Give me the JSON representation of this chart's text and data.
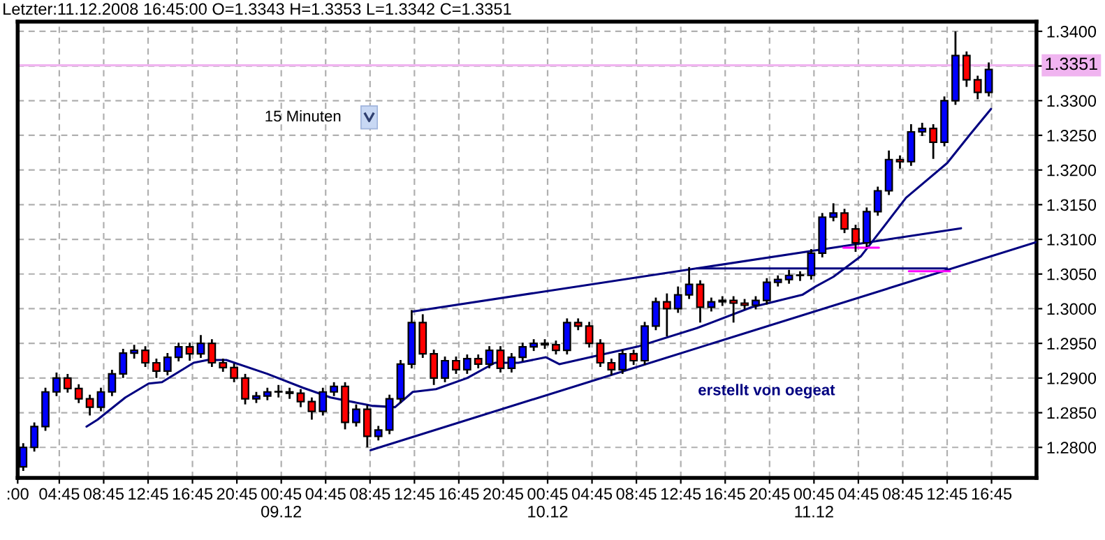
{
  "chart_data": {
    "type": "candlestick",
    "title": "Letzter:11.12.2008 16:45:00 O=1.3343 H=1.3353 L=1.3342 C=1.3351",
    "annotations": [
      "15 Minuten",
      "erstellt von oegeat"
    ],
    "xlim": [
      "2008-12-08T01:00",
      "2008-12-11T20:48"
    ],
    "xticks": [
      {
        "value": "2008-12-08T01:00",
        "label": ":00"
      },
      {
        "value": "2008-12-08T04:45",
        "label": "04:45"
      },
      {
        "value": "2008-12-08T08:45",
        "label": "08:45"
      },
      {
        "value": "2008-12-08T12:45",
        "label": "12:45"
      },
      {
        "value": "2008-12-08T16:45",
        "label": "16:45"
      },
      {
        "value": "2008-12-08T20:45",
        "label": "20:45"
      },
      {
        "value": "2008-12-09T00:45",
        "label": "00:45\n09.12"
      },
      {
        "value": "2008-12-09T04:45",
        "label": "04:45"
      },
      {
        "value": "2008-12-09T08:45",
        "label": "08:45"
      },
      {
        "value": "2008-12-09T12:45",
        "label": "12:45"
      },
      {
        "value": "2008-12-09T16:45",
        "label": "16:45"
      },
      {
        "value": "2008-12-09T20:45",
        "label": "20:45"
      },
      {
        "value": "2008-12-10T00:45",
        "label": "00:45\n10.12"
      },
      {
        "value": "2008-12-10T04:45",
        "label": "04:45"
      },
      {
        "value": "2008-12-10T08:45",
        "label": "08:45"
      },
      {
        "value": "2008-12-10T12:45",
        "label": "12:45"
      },
      {
        "value": "2008-12-10T16:45",
        "label": "16:45"
      },
      {
        "value": "2008-12-10T20:45",
        "label": "20:45"
      },
      {
        "value": "2008-12-11T00:45",
        "label": "00:45\n11.12"
      },
      {
        "value": "2008-12-11T04:45",
        "label": "04:45"
      },
      {
        "value": "2008-12-11T08:45",
        "label": "08:45"
      },
      {
        "value": "2008-12-11T12:45",
        "label": "12:45"
      },
      {
        "value": "2008-12-11T16:45",
        "label": "16:45"
      }
    ],
    "ylim": [
      1.2756,
      1.3414
    ],
    "yticks": [
      {
        "value": 1.28,
        "label": "1.2800"
      },
      {
        "value": 1.285,
        "label": "1.2850"
      },
      {
        "value": 1.29,
        "label": "1.2900"
      },
      {
        "value": 1.295,
        "label": "1.2950"
      },
      {
        "value": 1.3,
        "label": "1.3000"
      },
      {
        "value": 1.305,
        "label": "1.3050"
      },
      {
        "value": 1.31,
        "label": "1.3100"
      },
      {
        "value": 1.315,
        "label": "1.3150"
      },
      {
        "value": 1.32,
        "label": "1.3200"
      },
      {
        "value": 1.325,
        "label": "1.3250"
      },
      {
        "value": 1.33,
        "label": "1.3300"
      },
      {
        "value": 1.335,
        "label": null
      },
      {
        "value": 1.34,
        "label": "1.3400"
      }
    ],
    "grid": true,
    "ref_lines": [
      {
        "axis": "y",
        "value": 1.3351,
        "label": "1.3351",
        "color": "#f0b4f0"
      }
    ],
    "series": [
      {
        "x": [
          "2008-12-08T01:30",
          "2008-12-08T02:30",
          "2008-12-08T03:30",
          "2008-12-08T04:30",
          "2008-12-08T05:30",
          "2008-12-08T06:30",
          "2008-12-08T07:30",
          "2008-12-08T08:30",
          "2008-12-08T09:30",
          "2008-12-08T10:30",
          "2008-12-08T11:30",
          "2008-12-08T12:30",
          "2008-12-08T13:30",
          "2008-12-08T14:30",
          "2008-12-08T15:30",
          "2008-12-08T16:30",
          "2008-12-08T17:30",
          "2008-12-08T18:30",
          "2008-12-08T19:30",
          "2008-12-08T20:30",
          "2008-12-08T21:30",
          "2008-12-08T22:30",
          "2008-12-08T23:30",
          "2008-12-09T00:30",
          "2008-12-09T01:30",
          "2008-12-09T02:30",
          "2008-12-09T03:30",
          "2008-12-09T04:30",
          "2008-12-09T05:30",
          "2008-12-09T06:30",
          "2008-12-09T07:30",
          "2008-12-09T08:30",
          "2008-12-09T09:30",
          "2008-12-09T10:30",
          "2008-12-09T11:30",
          "2008-12-09T12:30",
          "2008-12-09T13:30",
          "2008-12-09T14:30",
          "2008-12-09T15:30",
          "2008-12-09T16:30",
          "2008-12-09T17:30",
          "2008-12-09T18:30",
          "2008-12-09T19:30",
          "2008-12-09T20:30",
          "2008-12-09T21:30",
          "2008-12-09T22:30",
          "2008-12-09T23:30",
          "2008-12-10T00:30",
          "2008-12-10T01:30",
          "2008-12-10T02:30",
          "2008-12-10T03:30",
          "2008-12-10T04:30",
          "2008-12-10T05:30",
          "2008-12-10T06:30",
          "2008-12-10T07:30",
          "2008-12-10T08:30",
          "2008-12-10T09:30",
          "2008-12-10T10:30",
          "2008-12-10T11:30",
          "2008-12-10T12:30",
          "2008-12-10T13:30",
          "2008-12-10T14:30",
          "2008-12-10T15:30",
          "2008-12-10T16:30",
          "2008-12-10T17:30",
          "2008-12-10T18:30",
          "2008-12-10T19:30",
          "2008-12-10T20:30",
          "2008-12-10T21:30",
          "2008-12-10T22:30",
          "2008-12-10T23:30",
          "2008-12-11T00:30",
          "2008-12-11T01:30",
          "2008-12-11T02:30",
          "2008-12-11T03:30",
          "2008-12-11T04:30",
          "2008-12-11T05:30",
          "2008-12-11T06:30",
          "2008-12-11T07:30",
          "2008-12-11T08:30",
          "2008-12-11T09:30",
          "2008-12-11T10:30",
          "2008-12-11T11:30",
          "2008-12-11T12:30",
          "2008-12-11T13:30",
          "2008-12-11T14:30",
          "2008-12-11T15:30",
          "2008-12-11T16:30"
        ],
        "ohlc": [
          [
            1.2772,
            1.2806,
            1.2766,
            1.28
          ],
          [
            1.28,
            1.2836,
            1.2794,
            1.283
          ],
          [
            1.283,
            1.2886,
            1.2824,
            1.288
          ],
          [
            1.288,
            1.2908,
            1.2874,
            1.29
          ],
          [
            1.29,
            1.2906,
            1.2879,
            1.2885
          ],
          [
            1.2885,
            1.2891,
            1.2864,
            1.287
          ],
          [
            1.287,
            1.2876,
            1.2846,
            1.2858
          ],
          [
            1.2858,
            1.2886,
            1.2852,
            1.288
          ],
          [
            1.288,
            1.2912,
            1.2874,
            1.2906
          ],
          [
            1.2906,
            1.2942,
            1.29,
            1.2936
          ],
          [
            1.2936,
            1.2948,
            1.2928,
            1.294
          ],
          [
            1.294,
            1.2946,
            1.2916,
            1.2922
          ],
          [
            1.2922,
            1.2928,
            1.29,
            1.291
          ],
          [
            1.291,
            1.2936,
            1.2904,
            1.293
          ],
          [
            1.293,
            1.2951,
            1.2924,
            1.2945
          ],
          [
            1.2945,
            1.2951,
            1.2925,
            1.2935
          ],
          [
            1.2935,
            1.2962,
            1.2929,
            1.295
          ],
          [
            1.295,
            1.2956,
            1.2916,
            1.2922
          ],
          [
            1.2922,
            1.2928,
            1.2909,
            1.2915
          ],
          [
            1.2915,
            1.2921,
            1.2894,
            1.29
          ],
          [
            1.29,
            1.2906,
            1.2862,
            1.287
          ],
          [
            1.287,
            1.288,
            1.2864,
            1.2874
          ],
          [
            1.2874,
            1.2886,
            1.2868,
            1.288
          ],
          [
            1.288,
            1.289,
            1.2872,
            1.288
          ],
          [
            1.288,
            1.2886,
            1.287,
            1.2878
          ],
          [
            1.2878,
            1.2884,
            1.2858,
            1.2866
          ],
          [
            1.2866,
            1.2872,
            1.284,
            1.2852
          ],
          [
            1.2852,
            1.2886,
            1.2846,
            1.288
          ],
          [
            1.288,
            1.2894,
            1.2874,
            1.2888
          ],
          [
            1.2888,
            1.2894,
            1.2826,
            1.2836
          ],
          [
            1.2836,
            1.2862,
            1.283,
            1.2855
          ],
          [
            1.2855,
            1.2861,
            1.28,
            1.2816
          ],
          [
            1.2816,
            1.2831,
            1.281,
            1.2825
          ],
          [
            1.2825,
            1.2876,
            1.2819,
            1.287
          ],
          [
            1.287,
            1.2926,
            1.2864,
            1.292
          ],
          [
            1.292,
            1.2998,
            1.2914,
            1.298
          ],
          [
            1.298,
            1.2992,
            1.2929,
            1.2935
          ],
          [
            1.2935,
            1.2941,
            1.289,
            1.29
          ],
          [
            1.29,
            1.2931,
            1.2894,
            1.2925
          ],
          [
            1.2925,
            1.2931,
            1.2906,
            1.2912
          ],
          [
            1.2912,
            1.2934,
            1.2906,
            1.2928
          ],
          [
            1.2928,
            1.2934,
            1.2914,
            1.292
          ],
          [
            1.292,
            1.2946,
            1.2914,
            1.294
          ],
          [
            1.294,
            1.2946,
            1.2908,
            1.2914
          ],
          [
            1.2914,
            1.2936,
            1.2908,
            1.293
          ],
          [
            1.293,
            1.2951,
            1.2924,
            1.2945
          ],
          [
            1.2945,
            1.2956,
            1.2939,
            1.295
          ],
          [
            1.295,
            1.2956,
            1.2942,
            1.2948
          ],
          [
            1.2948,
            1.2954,
            1.2934,
            1.294
          ],
          [
            1.294,
            1.2986,
            1.2934,
            1.298
          ],
          [
            1.298,
            1.2986,
            1.2969,
            1.2975
          ],
          [
            1.2975,
            1.2981,
            1.2944,
            1.295
          ],
          [
            1.295,
            1.2956,
            1.2916,
            1.2922
          ],
          [
            1.2922,
            1.2928,
            1.2904,
            1.2912
          ],
          [
            1.2912,
            1.2941,
            1.2906,
            1.2935
          ],
          [
            1.2935,
            1.2941,
            1.2919,
            1.2925
          ],
          [
            1.2925,
            1.2981,
            1.2919,
            1.2975
          ],
          [
            1.2975,
            1.3016,
            1.2969,
            1.301
          ],
          [
            1.301,
            1.3022,
            1.296,
            1.3
          ],
          [
            1.3,
            1.3032,
            1.2994,
            1.302
          ],
          [
            1.302,
            1.306,
            1.3014,
            1.3035
          ],
          [
            1.3035,
            1.3041,
            1.298,
            1.3002
          ],
          [
            1.3002,
            1.3016,
            1.2996,
            1.301
          ],
          [
            1.301,
            1.3018,
            1.3004,
            1.3012
          ],
          [
            1.3012,
            1.3018,
            1.298,
            1.3008
          ],
          [
            1.3008,
            1.3014,
            1.2999,
            1.3005
          ],
          [
            1.3005,
            1.3018,
            1.2999,
            1.3012
          ],
          [
            1.3012,
            1.3044,
            1.3006,
            1.3038
          ],
          [
            1.3038,
            1.3048,
            1.3032,
            1.3042
          ],
          [
            1.3042,
            1.3056,
            1.3036,
            1.3048
          ],
          [
            1.3048,
            1.3054,
            1.304,
            1.3048
          ],
          [
            1.3048,
            1.3086,
            1.3042,
            1.308
          ],
          [
            1.308,
            1.3138,
            1.3074,
            1.3132
          ],
          [
            1.3132,
            1.3152,
            1.3126,
            1.3138
          ],
          [
            1.3138,
            1.3144,
            1.3109,
            1.3115
          ],
          [
            1.3115,
            1.3121,
            1.3082,
            1.3095
          ],
          [
            1.3095,
            1.3146,
            1.3089,
            1.314
          ],
          [
            1.314,
            1.3176,
            1.3134,
            1.317
          ],
          [
            1.317,
            1.3228,
            1.3164,
            1.3215
          ],
          [
            1.3215,
            1.3221,
            1.3202,
            1.3212
          ],
          [
            1.3212,
            1.3266,
            1.3206,
            1.3255
          ],
          [
            1.3255,
            1.3268,
            1.3249,
            1.326
          ],
          [
            1.326,
            1.3266,
            1.3216,
            1.324
          ],
          [
            1.324,
            1.3306,
            1.3234,
            1.33
          ],
          [
            1.33,
            1.34,
            1.3294,
            1.3365
          ],
          [
            1.3365,
            1.3371,
            1.332,
            1.333
          ],
          [
            1.333,
            1.3336,
            1.3302,
            1.3312
          ],
          [
            1.3312,
            1.3355,
            1.3306,
            1.3345
          ]
        ],
        "colors": [
          "#0000ff",
          "#0000ff",
          "#0000ff",
          "#0000ff",
          "#ff0000",
          "#ff0000",
          "#ff0000",
          "#0000ff",
          "#0000ff",
          "#0000ff",
          "#0000ff",
          "#ff0000",
          "#ff0000",
          "#0000ff",
          "#0000ff",
          "#ff0000",
          "#0000ff",
          "#ff0000",
          "#ff0000",
          "#ff0000",
          "#ff0000",
          "#0000ff",
          "#0000ff",
          "#0000ff",
          "#ff0000",
          "#ff0000",
          "#ff0000",
          "#0000ff",
          "#0000ff",
          "#ff0000",
          "#0000ff",
          "#ff0000",
          "#0000ff",
          "#0000ff",
          "#0000ff",
          "#0000ff",
          "#ff0000",
          "#ff0000",
          "#0000ff",
          "#ff0000",
          "#0000ff",
          "#ff0000",
          "#0000ff",
          "#ff0000",
          "#0000ff",
          "#0000ff",
          "#0000ff",
          "#ff0000",
          "#ff0000",
          "#0000ff",
          "#ff0000",
          "#ff0000",
          "#ff0000",
          "#ff0000",
          "#0000ff",
          "#ff0000",
          "#0000ff",
          "#0000ff",
          "#ff0000",
          "#0000ff",
          "#0000ff",
          "#ff0000",
          "#0000ff",
          "#0000ff",
          "#ff0000",
          "#ff0000",
          "#0000ff",
          "#0000ff",
          "#0000ff",
          "#0000ff",
          "#0000ff",
          "#0000ff",
          "#0000ff",
          "#0000ff",
          "#ff0000",
          "#ff0000",
          "#0000ff",
          "#0000ff",
          "#0000ff",
          "#ff0000",
          "#0000ff",
          "#0000ff",
          "#ff0000",
          "#0000ff",
          "#0000ff",
          "#ff0000",
          "#ff0000",
          "#0000ff"
        ]
      },
      {
        "type": "line",
        "color": "#000080",
        "x": [
          "2008-12-08T07:12",
          "2008-12-08T08:12",
          "2008-12-08T10:42",
          "2008-12-08T12:48",
          "2008-12-08T14:00",
          "2008-12-08T16:51",
          "2008-12-08T18:06",
          "2008-12-08T19:48",
          "2008-12-08T23:30",
          "2008-12-09T02:42",
          "2008-12-09T05:12",
          "2008-12-09T08:54",
          "2008-12-09T11:00",
          "2008-12-09T12:36",
          "2008-12-09T14:42",
          "2008-12-09T17:30",
          "2008-12-09T20:00",
          "2008-12-09T22:06",
          "2008-12-10T00:36",
          "2008-12-10T01:48",
          "2008-12-10T09:00",
          "2008-12-10T14:12",
          "2008-12-10T19:06",
          "2008-12-10T23:42",
          "2008-12-11T00:54",
          "2008-12-11T02:30",
          "2008-12-11T05:00",
          "2008-12-11T09:03",
          "2008-12-11T12:45",
          "2008-12-11T14:51",
          "2008-12-11T16:42"
        ],
        "values": [
          1.283,
          1.284,
          1.2872,
          1.2892,
          1.2894,
          1.2922,
          1.2926,
          1.2926,
          1.2906,
          1.2886,
          1.2872,
          1.286,
          1.2858,
          1.288,
          1.2884,
          1.29,
          1.2922,
          1.2922,
          1.293,
          1.292,
          1.2946,
          1.2972,
          1.3002,
          1.302,
          1.3032,
          1.3046,
          1.3076,
          1.316,
          1.321,
          1.3252,
          1.3288
        ]
      },
      {
        "type": "line",
        "color": "#000080",
        "x": [
          "2008-12-09T12:36",
          "2008-12-11T14:00"
        ],
        "values": [
          1.2996,
          1.3116
        ]
      },
      {
        "type": "line",
        "color": "#000080",
        "x": [
          "2008-12-09T08:48",
          "2008-12-11T20:48"
        ],
        "values": [
          1.2796,
          1.3096
        ]
      },
      {
        "type": "line",
        "color": "#000080",
        "x": [
          "2008-12-10T14:12",
          "2008-12-11T12:45"
        ],
        "values": [
          1.3058,
          1.3058
        ]
      },
      {
        "type": "line",
        "color": "#ff00ff",
        "x": [
          "2008-12-11T03:24",
          "2008-12-11T06:36"
        ],
        "values": [
          1.3088,
          1.3088
        ]
      },
      {
        "type": "line",
        "color": "#ff00ff",
        "x": [
          "2008-12-11T09:18",
          "2008-12-11T13:00"
        ],
        "values": [
          1.3054,
          1.3054
        ]
      }
    ]
  }
}
